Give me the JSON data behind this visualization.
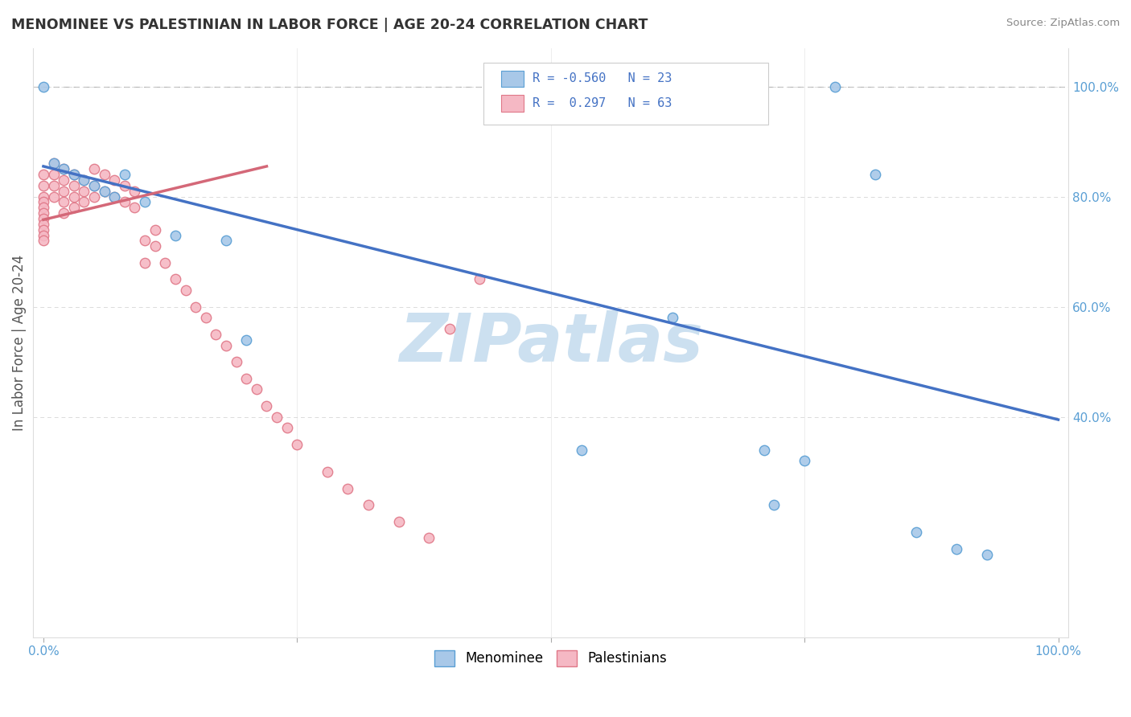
{
  "title": "MENOMINEE VS PALESTINIAN IN LABOR FORCE | AGE 20-24 CORRELATION CHART",
  "source": "Source: ZipAtlas.com",
  "ylabel": "In Labor Force | Age 20-24",
  "menominee_color": "#a8c8e8",
  "menominee_edge_color": "#5a9fd4",
  "palestinian_color": "#f5b8c4",
  "palestinian_edge_color": "#e07888",
  "menominee_line_color": "#4472c4",
  "palestinian_line_color": "#d46878",
  "menominee_R": -0.56,
  "menominee_N": 23,
  "palestinian_R": 0.297,
  "palestinian_N": 63,
  "background_color": "#ffffff",
  "watermark": "ZIPatlas",
  "watermark_color": "#cce0f0",
  "grid_color": "#cccccc",
  "menominee_x": [
    0.0,
    0.01,
    0.02,
    0.03,
    0.04,
    0.05,
    0.06,
    0.07,
    0.08,
    0.1,
    0.13,
    0.18,
    0.2,
    0.53,
    0.62,
    0.71,
    0.72,
    0.75,
    0.78,
    0.82,
    0.86,
    0.9,
    0.93
  ],
  "menominee_y": [
    1.0,
    0.86,
    0.85,
    0.84,
    0.83,
    0.82,
    0.81,
    0.8,
    0.84,
    0.79,
    0.73,
    0.72,
    0.54,
    0.34,
    0.58,
    0.34,
    0.24,
    0.32,
    1.0,
    0.84,
    0.19,
    0.16,
    0.15
  ],
  "palestinian_x": [
    0.0,
    0.0,
    0.0,
    0.0,
    0.0,
    0.0,
    0.0,
    0.0,
    0.0,
    0.0,
    0.0,
    0.01,
    0.01,
    0.01,
    0.01,
    0.02,
    0.02,
    0.02,
    0.02,
    0.02,
    0.03,
    0.03,
    0.03,
    0.03,
    0.04,
    0.04,
    0.04,
    0.05,
    0.05,
    0.05,
    0.06,
    0.06,
    0.07,
    0.07,
    0.08,
    0.08,
    0.09,
    0.09,
    0.1,
    0.1,
    0.11,
    0.11,
    0.12,
    0.13,
    0.14,
    0.15,
    0.16,
    0.17,
    0.18,
    0.19,
    0.2,
    0.21,
    0.22,
    0.23,
    0.24,
    0.25,
    0.28,
    0.3,
    0.32,
    0.35,
    0.38,
    0.4,
    0.43
  ],
  "palestinian_y": [
    0.84,
    0.82,
    0.8,
    0.79,
    0.78,
    0.77,
    0.76,
    0.75,
    0.74,
    0.73,
    0.72,
    0.86,
    0.84,
    0.82,
    0.8,
    0.85,
    0.83,
    0.81,
    0.79,
    0.77,
    0.84,
    0.82,
    0.8,
    0.78,
    0.83,
    0.81,
    0.79,
    0.85,
    0.82,
    0.8,
    0.84,
    0.81,
    0.83,
    0.8,
    0.82,
    0.79,
    0.81,
    0.78,
    0.72,
    0.68,
    0.74,
    0.71,
    0.68,
    0.65,
    0.63,
    0.6,
    0.58,
    0.55,
    0.53,
    0.5,
    0.47,
    0.45,
    0.42,
    0.4,
    0.38,
    0.35,
    0.3,
    0.27,
    0.24,
    0.21,
    0.18,
    0.56,
    0.65
  ],
  "men_line_x0": 0.0,
  "men_line_x1": 1.0,
  "men_line_y0": 0.855,
  "men_line_y1": 0.395,
  "pal_line_x0": 0.0,
  "pal_line_x1": 0.22,
  "pal_line_y0": 0.758,
  "pal_line_y1": 0.855,
  "xlim_min": -0.01,
  "xlim_max": 1.01,
  "ylim_min": 0.0,
  "ylim_max": 1.07,
  "yticks": [
    0.4,
    0.6,
    0.8,
    1.0
  ],
  "ytick_labels": [
    "40.0%",
    "60.0%",
    "80.0%",
    "100.0%"
  ],
  "xticks": [
    0.0,
    0.25,
    0.5,
    0.75,
    1.0
  ],
  "xtick_labels": [
    "0.0%",
    "",
    "",
    "",
    "100.0%"
  ]
}
